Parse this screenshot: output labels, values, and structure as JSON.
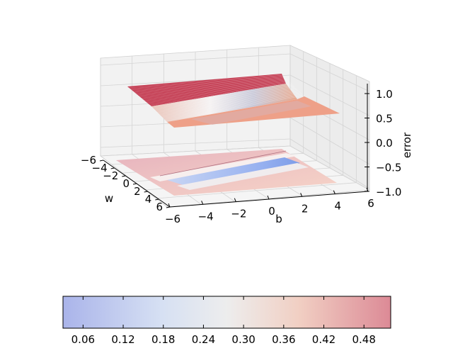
{
  "chart_data": {
    "type": "surface3d",
    "title": "",
    "xlabel": "w",
    "ylabel": "b",
    "zlabel": "error",
    "w_ticks": [
      -6,
      -4,
      -2,
      0,
      2,
      4,
      6
    ],
    "b_ticks": [
      -6,
      -4,
      -2,
      0,
      2,
      4,
      6
    ],
    "z_ticks": [
      -1.0,
      -0.5,
      0.0,
      0.5,
      1.0
    ],
    "w_tick_labels": [
      "−6",
      "−4",
      "−2",
      "0",
      "2",
      "4",
      "6"
    ],
    "b_tick_labels": [
      "−6",
      "−4",
      "−2",
      "0",
      "2",
      "4",
      "6"
    ],
    "z_tick_labels": [
      "−1.0",
      "−0.5",
      "0.0",
      "0.5",
      "1.0"
    ],
    "wlim": [
      -6,
      6
    ],
    "blim": [
      -6,
      6
    ],
    "zlim": [
      -1,
      1
    ],
    "surface": {
      "high_plateau_error": 0.95,
      "low_plateau_error": 0.45,
      "projected_contour_level": -1.0
    },
    "grid": true,
    "colorbar": {
      "colormap": "coolwarm",
      "range": [
        0.03,
        0.52
      ],
      "ticks": [
        0.06,
        0.12,
        0.18,
        0.24,
        0.3,
        0.36,
        0.42,
        0.48
      ],
      "tick_labels": [
        "0.06",
        "0.12",
        "0.18",
        "0.24",
        "0.30",
        "0.36",
        "0.42",
        "0.48"
      ],
      "placement": "bottom"
    }
  }
}
